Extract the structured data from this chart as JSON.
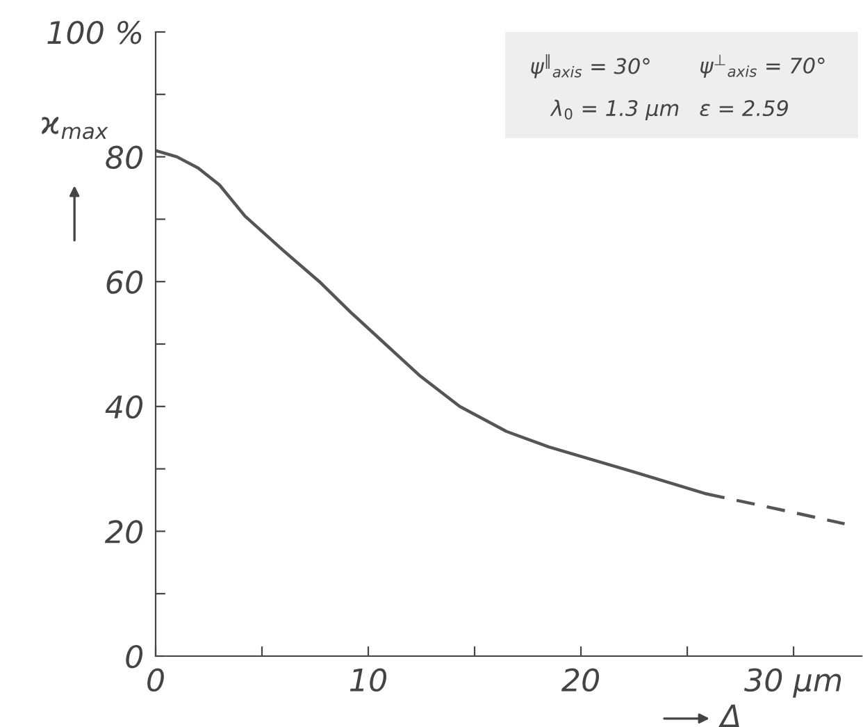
{
  "chart_data": {
    "type": "line",
    "xlabel": "Δ",
    "ylabel": "ϰ$_{max}$",
    "series": [
      {
        "color": "#555555",
        "line_style": "solid",
        "x": [
          0,
          1,
          2,
          3,
          4.2,
          6,
          7.7,
          9.2,
          10.8,
          12.4,
          14.3,
          16.5,
          18.5,
          20,
          22.5,
          25.9
        ],
        "values": [
          81,
          80,
          78.2,
          75.5,
          70.5,
          65,
          60,
          55,
          50,
          45,
          40,
          36,
          33.5,
          32,
          29.5,
          26
        ]
      },
      {
        "color": "#555555",
        "line_style": "dashed",
        "x": [
          25.9,
          30,
          32.4
        ],
        "values": [
          26,
          23,
          21.2
        ]
      }
    ],
    "xlim": [
      0,
      33.2
    ],
    "ylim": [
      0,
      100
    ],
    "xticks": [
      0,
      {
        "value": 5,
        "label": null
      },
      10,
      {
        "value": 15,
        "label": null
      },
      20,
      {
        "value": 25,
        "label": null
      },
      {
        "value": 30,
        "label": "30 µm"
      }
    ],
    "yticks": [
      0,
      {
        "value": 10,
        "label": null
      },
      20,
      {
        "value": 30,
        "label": null
      },
      40,
      {
        "value": 50,
        "label": null
      },
      60,
      {
        "value": 70,
        "label": null
      },
      80,
      {
        "value": 90,
        "label": null
      },
      {
        "value": 100,
        "label": "100 %"
      }
    ],
    "annotations": [
      "ψ$^{∥}$$_{axis}$ = 30°",
      "ψ$^{⊥}$$_{axis}$ = 70°",
      "λ$_{0}$ = 1.3 µm",
      "ε = 2.59"
    ],
    "grid": false,
    "legend": false,
    "marker": "none"
  }
}
